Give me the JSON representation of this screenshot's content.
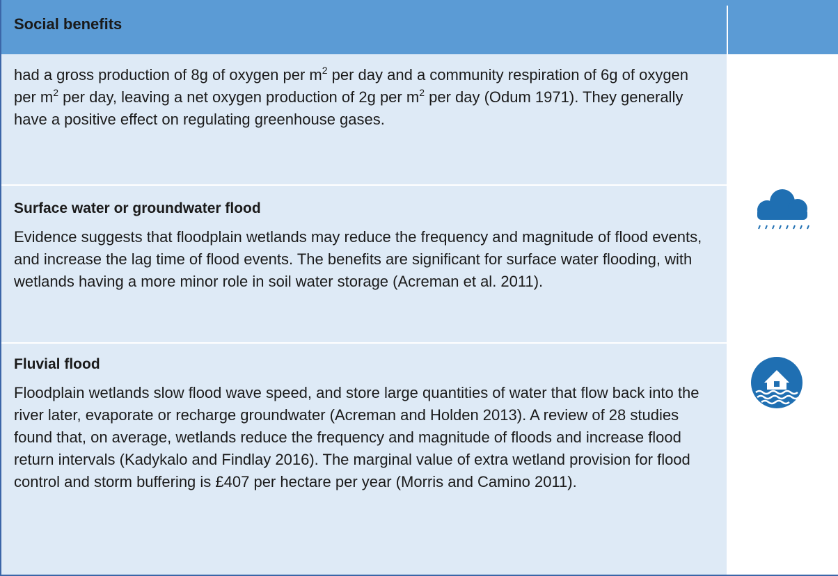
{
  "header": {
    "title": "Social benefits"
  },
  "intro": {
    "runs": [
      {
        "text": "had a gross production of 8g of oxygen per m"
      },
      {
        "sup": "2"
      },
      {
        "text": " per day and a community respiration of 6g of oxygen per m"
      },
      {
        "sup": "2"
      },
      {
        "text": " per day, leaving a net oxygen production of 2g per m"
      },
      {
        "sup": "2"
      },
      {
        "text": " per day (Odum 1971). They generally have a positive effect on regulating greenhouse gases."
      }
    ]
  },
  "sections": [
    {
      "heading": "Surface water or groundwater flood",
      "body": "Evidence suggests that floodplain wetlands may reduce the frequency and magnitude of flood events, and increase the lag time of flood events. The benefits are significant for surface water flooding, with wetlands having a more minor role in soil water storage (Acreman et al. 2011)."
    },
    {
      "heading": "Fluvial flood",
      "body": "Floodplain wetlands slow flood wave speed, and store large quantities of water that flow back into the river later, evaporate or recharge groundwater (Acreman and Holden 2013). A review of 28 studies found that, on average, wetlands reduce the frequency and magnitude of floods and increase flood return intervals (Kadykalo and Findlay 2016). The marginal value of extra wetland provision for flood control and storm buffering is £407 per hectare per year (Morris and Camino 2011)."
    }
  ]
}
